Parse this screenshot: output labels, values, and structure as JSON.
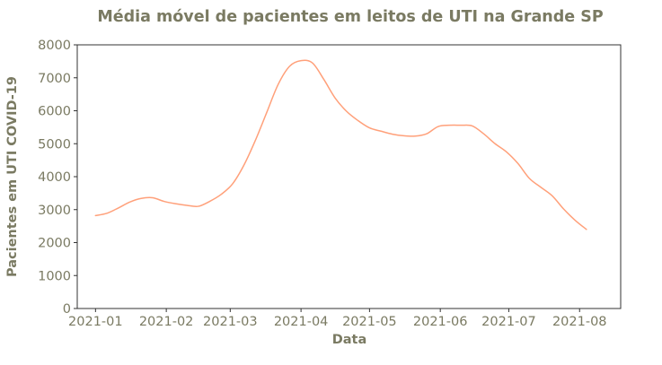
{
  "chart_data": {
    "type": "line",
    "title": "Média móvel de pacientes em leitos de UTI na Grande SP",
    "xlabel": "Data",
    "ylabel": "Pacientes em UTI COVID-19",
    "ylim": [
      0,
      8000
    ],
    "yticks": [
      0,
      1000,
      2000,
      3000,
      4000,
      5000,
      6000,
      7000,
      8000
    ],
    "xlim": [
      "2020-12-24",
      "2021-08-19"
    ],
    "xticks": [
      {
        "date": "2021-01-01",
        "label": "2021-01"
      },
      {
        "date": "2021-02-01",
        "label": "2021-02"
      },
      {
        "date": "2021-03-01",
        "label": "2021-03"
      },
      {
        "date": "2021-04-01",
        "label": "2021-04"
      },
      {
        "date": "2021-05-01",
        "label": "2021-05"
      },
      {
        "date": "2021-06-01",
        "label": "2021-06"
      },
      {
        "date": "2021-07-01",
        "label": "2021-07"
      },
      {
        "date": "2021-08-01",
        "label": "2021-08"
      }
    ],
    "grid": false,
    "colors": {
      "line": "#ffa07a",
      "text": "#7a7a62",
      "axis": "#333333"
    },
    "series": [
      {
        "x": [
          "2021-01-01",
          "2021-01-06",
          "2021-01-11",
          "2021-01-16",
          "2021-01-21",
          "2021-01-26",
          "2021-01-31",
          "2021-02-05",
          "2021-02-10",
          "2021-02-15",
          "2021-02-20",
          "2021-02-25",
          "2021-03-02",
          "2021-03-07",
          "2021-03-12",
          "2021-03-17",
          "2021-03-22",
          "2021-03-27",
          "2021-04-01",
          "2021-04-06",
          "2021-04-11",
          "2021-04-16",
          "2021-04-21",
          "2021-04-26",
          "2021-05-01",
          "2021-05-06",
          "2021-05-11",
          "2021-05-16",
          "2021-05-21",
          "2021-05-26",
          "2021-05-31",
          "2021-06-05",
          "2021-06-10",
          "2021-06-15",
          "2021-06-20",
          "2021-06-25",
          "2021-06-30",
          "2021-07-05",
          "2021-07-10",
          "2021-07-15",
          "2021-07-20",
          "2021-07-25",
          "2021-07-30",
          "2021-08-04"
        ],
        "values": [
          2820,
          2890,
          3050,
          3230,
          3340,
          3360,
          3250,
          3180,
          3130,
          3100,
          3250,
          3460,
          3780,
          4350,
          5100,
          5950,
          6800,
          7350,
          7520,
          7450,
          6950,
          6380,
          5980,
          5700,
          5480,
          5380,
          5290,
          5240,
          5230,
          5300,
          5520,
          5560,
          5560,
          5540,
          5300,
          5000,
          4750,
          4400,
          3950,
          3680,
          3420,
          3020,
          2680,
          2400
        ]
      }
    ]
  }
}
